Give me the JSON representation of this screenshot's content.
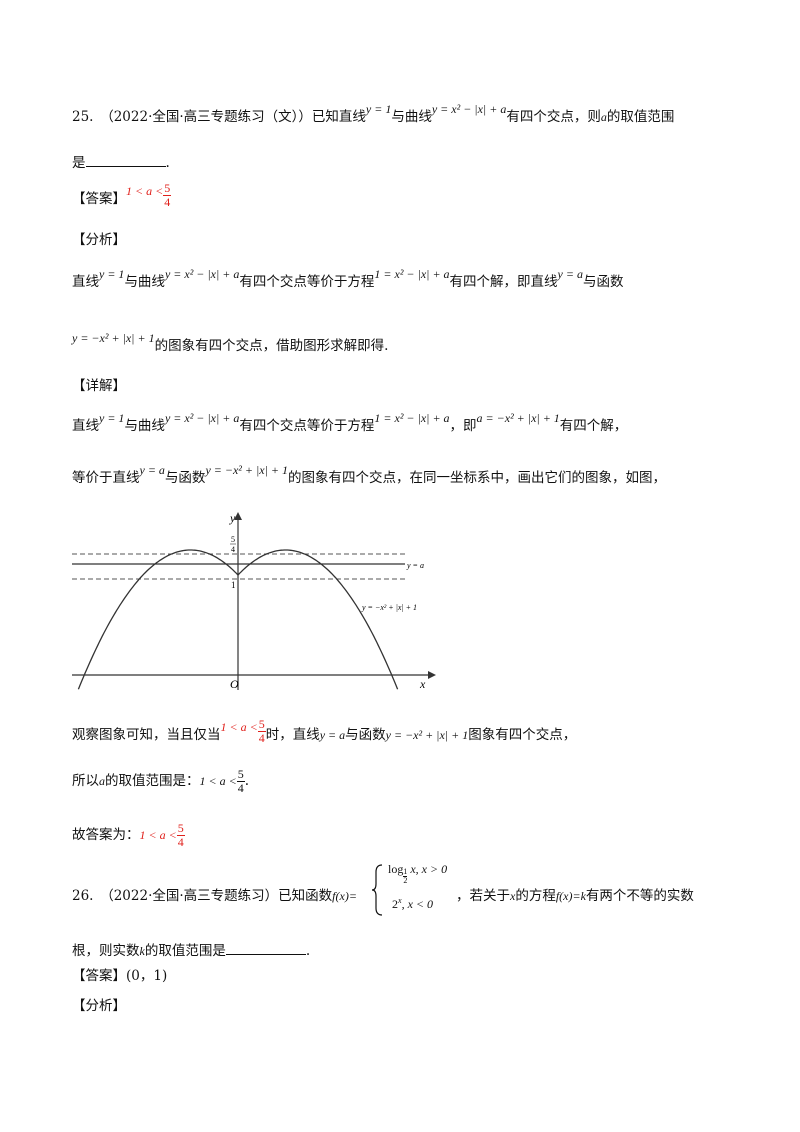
{
  "q25": {
    "line1": {
      "lead": "25.　（2022·全国·高三专题练习（文））已知直线",
      "eq_line": "y = 1",
      "mid": "与曲线",
      "eq_curve": "y = x² − |x| + a",
      "tail": "有四个交点，则",
      "var_a": "a",
      "tail2": "的取值范围"
    },
    "line2": {
      "text": "是",
      "end": "."
    },
    "answer": {
      "label": "【答案】",
      "expr": "1 < a <",
      "num": "5",
      "den": "4"
    },
    "analysis_label": "【分析】",
    "analysis": {
      "l1_a": "直线",
      "l1_eq1": "y = 1",
      "l1_b": "与曲线",
      "l1_eq2": "y = x² − |x| + a",
      "l1_c": "有四个交点等价于方程",
      "l1_eq3": "1 = x² − |x| + a",
      "l1_d": "有四个解，即直线",
      "l1_eq4": "y = a",
      "l1_e": "与函数",
      "l2_eq": "y = −x² + |x| + 1",
      "l2_text": "的图象有四个交点，借助图形求解即得."
    },
    "detail_label": "【详解】",
    "detail": {
      "l1_a": "直线",
      "l1_eq1": "y = 1",
      "l1_b": "与曲线",
      "l1_eq2": "y = x² − |x| + a",
      "l1_c": "有四个交点等价于方程",
      "l1_eq3": "1 = x² − |x| + a",
      "l1_d": "，即",
      "l1_eq4": "a = −x² + |x| + 1",
      "l1_e": "有四个解，",
      "l2_a": "等价于直线",
      "l2_eq1": "y = a",
      "l2_b": "与函数",
      "l2_eq2": "y = −x² + |x| + 1",
      "l2_c": "的图象有四个交点，在同一坐标系中，画出它们的图象，如图，"
    },
    "figure": {
      "y_axis": "y",
      "x_axis": "x",
      "origin": "O",
      "tick_five_fourths_num": "5",
      "tick_five_fourths_den": "4",
      "tick_one": "1",
      "label_line": "y = a",
      "label_curve": "y = −x² + |x| + 1"
    },
    "observe": {
      "a": "观察图象可知，当且仅当",
      "expr": "1 < a <",
      "num": "5",
      "den": "4",
      "b": "时，直线",
      "eq1": "y = a",
      "c": "与函数",
      "eq2": "y = −x² + |x| + 1",
      "d": "图象有四个交点，"
    },
    "therefore": {
      "a": "所以",
      "var_a": "a",
      "b": "的取值范围是：",
      "expr": "1 < a <",
      "num": "5",
      "den": "4",
      "end": "."
    },
    "final": {
      "a": "故答案为：",
      "expr": "1 < a <",
      "num": "5",
      "den": "4"
    }
  },
  "q26": {
    "lead": "26.　（2022·全国·高三专题练习）已知函数",
    "fx": "f(x)=",
    "case1": "log",
    "case1_base_num": "1",
    "case1_base_den": "2",
    "case1_rest": "x, x > 0",
    "case2": "2",
    "case2_exp": "x",
    "case2_rest": ", x < 0",
    "tail": "，若关于",
    "var_x": "x",
    "tail2": "的方程",
    "eq": "f(x)=k",
    "tail3": "有两个不等的实数",
    "line2": "根，则实数",
    "var_k": "k",
    "line2b": "的取值范围是",
    "end": ".",
    "answer_label": "【答案】",
    "answer_value": "(0，1)",
    "analysis_label": "【分析】"
  }
}
